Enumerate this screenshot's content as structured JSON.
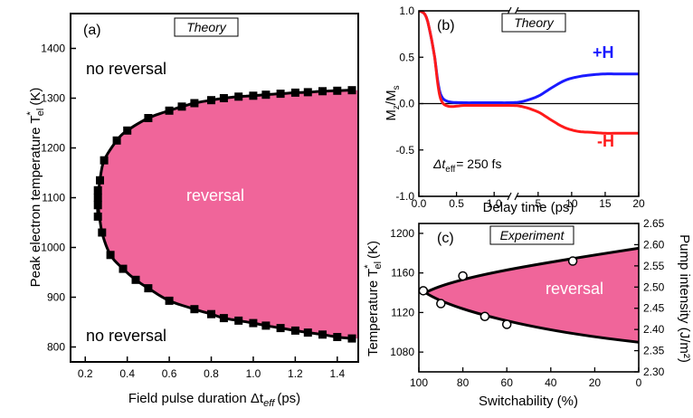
{
  "chart_data": [
    {
      "panel": "(a)",
      "type": "scatter",
      "tag": "Theory",
      "xlabel_main": "Field pulse duration Δt",
      "xlabel_sub": "eff",
      "xlabel_unit": "(ps)",
      "ylabel_main": "Peak electron temperature T",
      "ylabel_sub": "el",
      "ylabel_sup": "*",
      "ylabel_unit": "(K)",
      "xlim": [
        0.13,
        1.5
      ],
      "ylim": [
        770,
        1470
      ],
      "xticks": [
        "0.2",
        "0.4",
        "0.6",
        "0.8",
        "1.0",
        "1.2",
        "1.4"
      ],
      "xtick_values": [
        0.2,
        0.4,
        0.6,
        0.8,
        1.0,
        1.2,
        1.4
      ],
      "yticks": [
        "800",
        "900",
        "1000",
        "1100",
        "1200",
        "1300",
        "1400"
      ],
      "ytick_values": [
        800,
        900,
        1000,
        1100,
        1200,
        1300,
        1400
      ],
      "annotations": [
        "no reversal",
        "reversal",
        "no reversal"
      ],
      "fill_color": "#f0659a",
      "boundary": [
        {
          "x": 0.26,
          "y": 1100
        },
        {
          "x": 0.26,
          "y": 1115
        },
        {
          "x": 0.27,
          "y": 1135
        },
        {
          "x": 0.29,
          "y": 1175
        },
        {
          "x": 0.35,
          "y": 1215
        },
        {
          "x": 0.4,
          "y": 1235
        },
        {
          "x": 0.5,
          "y": 1260
        },
        {
          "x": 0.6,
          "y": 1275
        },
        {
          "x": 0.66,
          "y": 1283
        },
        {
          "x": 0.72,
          "y": 1290
        },
        {
          "x": 0.8,
          "y": 1296
        },
        {
          "x": 0.86,
          "y": 1300
        },
        {
          "x": 0.93,
          "y": 1303
        },
        {
          "x": 1.0,
          "y": 1305
        },
        {
          "x": 1.06,
          "y": 1307
        },
        {
          "x": 1.13,
          "y": 1309
        },
        {
          "x": 1.2,
          "y": 1311
        },
        {
          "x": 1.26,
          "y": 1312
        },
        {
          "x": 1.33,
          "y": 1314
        },
        {
          "x": 1.4,
          "y": 1315
        },
        {
          "x": 1.47,
          "y": 1316
        },
        {
          "x": 0.26,
          "y": 1085
        },
        {
          "x": 0.26,
          "y": 1062
        },
        {
          "x": 0.28,
          "y": 1030
        },
        {
          "x": 0.32,
          "y": 985
        },
        {
          "x": 0.38,
          "y": 957
        },
        {
          "x": 0.44,
          "y": 935
        },
        {
          "x": 0.5,
          "y": 918
        },
        {
          "x": 0.6,
          "y": 893
        },
        {
          "x": 0.72,
          "y": 876
        },
        {
          "x": 0.8,
          "y": 866
        },
        {
          "x": 0.86,
          "y": 858
        },
        {
          "x": 0.93,
          "y": 853
        },
        {
          "x": 1.0,
          "y": 848
        },
        {
          "x": 1.06,
          "y": 843
        },
        {
          "x": 1.13,
          "y": 838
        },
        {
          "x": 1.2,
          "y": 833
        },
        {
          "x": 1.26,
          "y": 829
        },
        {
          "x": 1.33,
          "y": 825
        },
        {
          "x": 1.4,
          "y": 820
        },
        {
          "x": 1.47,
          "y": 817
        }
      ]
    },
    {
      "panel": "(b)",
      "type": "line",
      "tag": "Theory",
      "xlabel": "Delay time (ps)",
      "ylabel_main": "M",
      "ylabel_sub1": "z",
      "ylabel_mid": "/M",
      "ylabel_sub2": "s",
      "xlim": [
        0,
        20
      ],
      "ylim": [
        -1.0,
        1.0
      ],
      "axis_break_at": 1.25,
      "xticks": [
        "0.0",
        "0.5",
        "1.0",
        "5",
        "10",
        "15",
        "20"
      ],
      "xtick_values": [
        0,
        0.5,
        1.0,
        5,
        10,
        15,
        20
      ],
      "yticks": [
        "1.0",
        "0.5",
        "0.0",
        "-0.5",
        "-1.0"
      ],
      "ytick_values": [
        1.0,
        0.5,
        0.0,
        -0.5,
        -1.0
      ],
      "annotation_main": "Δt",
      "annotation_sub": "eff",
      "annotation_rest": "= 250 fs",
      "series": [
        {
          "name": "+H",
          "color": "#1a1aff",
          "x": [
            0,
            0.1,
            0.2,
            0.25,
            0.3,
            0.4,
            0.6,
            0.8,
            1.0,
            1.2,
            2.5,
            5,
            7,
            9,
            11,
            13,
            15,
            17,
            20
          ],
          "values": [
            1.0,
            0.93,
            0.55,
            0.25,
            0.08,
            0.02,
            0.01,
            0.01,
            0.01,
            0.01,
            0.02,
            0.08,
            0.17,
            0.25,
            0.29,
            0.31,
            0.32,
            0.32,
            0.32
          ]
        },
        {
          "name": "-H",
          "color": "#ff1a1a",
          "x": [
            0,
            0.1,
            0.2,
            0.25,
            0.3,
            0.4,
            0.6,
            0.8,
            1.0,
            1.2,
            2.5,
            5,
            7,
            9,
            11,
            13,
            15,
            17,
            20
          ],
          "values": [
            1.0,
            0.93,
            0.55,
            0.22,
            0.03,
            -0.03,
            -0.02,
            -0.02,
            -0.02,
            -0.02,
            -0.03,
            -0.09,
            -0.18,
            -0.26,
            -0.3,
            -0.31,
            -0.32,
            -0.32,
            -0.32
          ]
        }
      ]
    },
    {
      "panel": "(c)",
      "type": "scatter",
      "tag": "Experiment",
      "xlabel": "Switchability (%)",
      "ylabel_main": "Temperature T",
      "ylabel_sub": "el",
      "ylabel_sup": "*",
      "ylabel_unit": "(K)",
      "y2label": "Pump intensity (J/m²)",
      "xlim": [
        100,
        0
      ],
      "ylim": [
        1060,
        1210
      ],
      "y2lim": [
        2.3,
        2.65
      ],
      "xticks": [
        "100",
        "80",
        "60",
        "40",
        "20",
        "0"
      ],
      "xtick_values": [
        100,
        80,
        60,
        40,
        20,
        0
      ],
      "yticks": [
        "1080",
        "1120",
        "1160",
        "1200"
      ],
      "ytick_values": [
        1080,
        1120,
        1160,
        1200
      ],
      "y2ticks": [
        "2.30",
        "2.35",
        "2.40",
        "2.45",
        "2.50",
        "2.55",
        "2.60",
        "2.65"
      ],
      "y2tick_values": [
        2.3,
        2.35,
        2.4,
        2.45,
        2.5,
        2.55,
        2.6,
        2.65
      ],
      "annotation": "reversal",
      "points": [
        {
          "x": 98,
          "y": 1142
        },
        {
          "x": 90,
          "y": 1129
        },
        {
          "x": 80,
          "y": 1157
        },
        {
          "x": 70,
          "y": 1116
        },
        {
          "x": 60,
          "y": 1108
        },
        {
          "x": 30,
          "y": 1172
        }
      ]
    }
  ]
}
